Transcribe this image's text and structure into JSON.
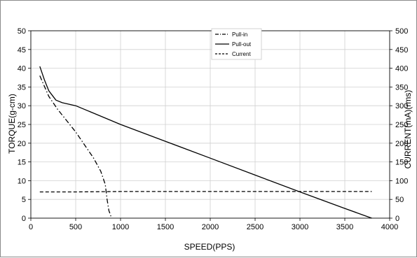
{
  "chart_data": {
    "type": "line",
    "title": "",
    "xlabel": "SPEED(PPS)",
    "ylabel": "TORQUE(g-cm)",
    "y2label": "CURRENT(mA)(rms)",
    "xlim": [
      0,
      4000
    ],
    "ylim": [
      0,
      50
    ],
    "y2lim": [
      0,
      500
    ],
    "x_ticks": [
      "0",
      "500",
      "1000",
      "1500",
      "2000",
      "2500",
      "3000",
      "3500",
      "4000"
    ],
    "y_ticks": [
      "0",
      "5",
      "10",
      "15",
      "20",
      "25",
      "30",
      "35",
      "40",
      "45",
      "50"
    ],
    "y2_ticks": [
      "0",
      "50",
      "100",
      "150",
      "200",
      "250",
      "300",
      "350",
      "400",
      "450",
      "500"
    ],
    "grid": true,
    "legend_position": "top-center",
    "series": [
      {
        "name": "Pull-in",
        "axis": "left",
        "style": "dashdot",
        "color": "#000000",
        "points": [
          [
            100,
            38
          ],
          [
            200,
            32.5
          ],
          [
            300,
            29
          ],
          [
            400,
            26
          ],
          [
            500,
            23
          ],
          [
            600,
            19.5
          ],
          [
            700,
            16
          ],
          [
            780,
            12.5
          ],
          [
            830,
            9
          ],
          [
            850,
            5
          ],
          [
            870,
            2
          ],
          [
            900,
            0
          ]
        ]
      },
      {
        "name": "Pull-out",
        "axis": "left",
        "style": "solid",
        "color": "#000000",
        "points": [
          [
            100,
            40.5
          ],
          [
            150,
            37
          ],
          [
            200,
            34
          ],
          [
            280,
            31.5
          ],
          [
            350,
            30.8
          ],
          [
            500,
            30
          ],
          [
            700,
            28
          ],
          [
            900,
            26
          ],
          [
            1000,
            25
          ],
          [
            1500,
            20.5
          ],
          [
            2000,
            16
          ],
          [
            2500,
            11.5
          ],
          [
            3000,
            7
          ],
          [
            3500,
            2.6
          ],
          [
            3800,
            0
          ]
        ]
      },
      {
        "name": "Current",
        "axis": "right",
        "style": "dashed",
        "color": "#000000",
        "points": [
          [
            100,
            70
          ],
          [
            500,
            70
          ],
          [
            1000,
            71
          ],
          [
            2000,
            71
          ],
          [
            3000,
            71
          ],
          [
            3800,
            71
          ]
        ]
      }
    ]
  }
}
